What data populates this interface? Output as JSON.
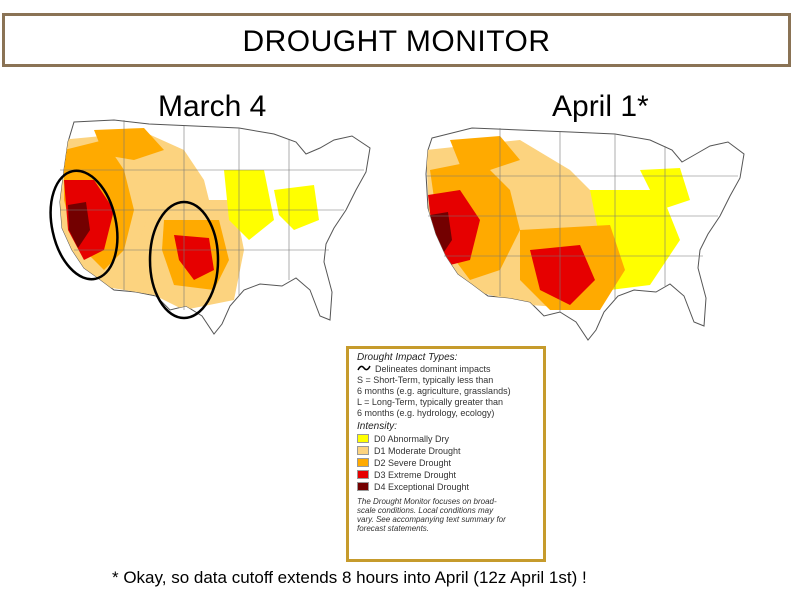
{
  "title": "DROUGHT MONITOR",
  "maps": {
    "left": {
      "label": "March 4",
      "highlight": "two circled areas (California/West and Southern Plains)"
    },
    "right": {
      "label": "April 1*"
    }
  },
  "legend": {
    "impact_header": "Drought Impact Types:",
    "impact_line": "Delineates dominant impacts",
    "short_term_1": "S = Short-Term, typically less than",
    "short_term_2": "6 months (e.g. agriculture, grasslands)",
    "long_term_1": "L = Long-Term, typically greater than",
    "long_term_2": "6 months (e.g. hydrology, ecology)",
    "intensity_header": "Intensity:",
    "levels": [
      {
        "label": "D0 Abnormally Dry",
        "color": "#ffff00"
      },
      {
        "label": "D1 Moderate Drought",
        "color": "#fcd37f"
      },
      {
        "label": "D2 Severe Drought",
        "color": "#ffaa00"
      },
      {
        "label": "D3 Extreme Drought",
        "color": "#e60000"
      },
      {
        "label": "D4 Exceptional Drought",
        "color": "#730000"
      }
    ],
    "note_1": "The Drought Monitor focuses on broad-",
    "note_2": "scale conditions. Local conditions may",
    "note_3": "vary. See accompanying text summary for",
    "note_4": "forecast statements."
  },
  "footnote": "* Okay, so data cutoff extends 8 hours into April (12z April 1st) !",
  "colors": {
    "frame": "#8a7355",
    "legend_frame": "#c69b2c"
  }
}
